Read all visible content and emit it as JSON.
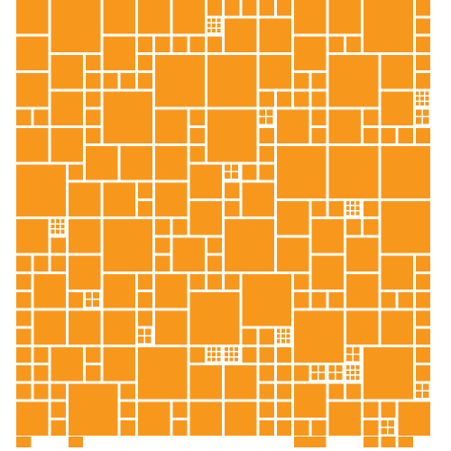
{
  "mosaic": {
    "tile_color": "#F7981D",
    "background_color": "#FFFFFF",
    "columns": 24,
    "rows": 24
  }
}
